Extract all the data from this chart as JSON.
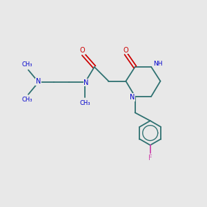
{
  "bg_color": "#e8e8e8",
  "bond_color": "#2d7070",
  "n_color": "#0000cc",
  "o_color": "#cc0000",
  "f_color": "#cc44aa",
  "font_size": 7.0,
  "bond_lw": 1.3,
  "xlim": [
    0,
    10
  ],
  "ylim": [
    0,
    10
  ]
}
